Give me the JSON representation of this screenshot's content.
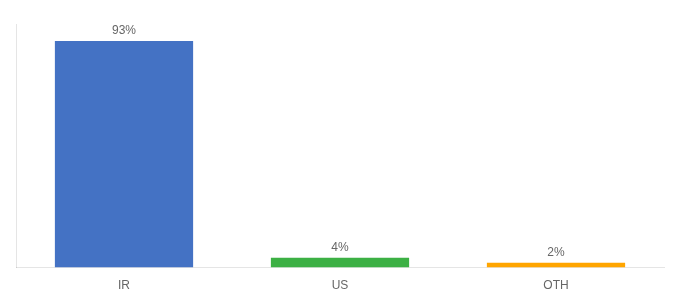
{
  "chart_data": {
    "type": "bar",
    "categories": [
      "IR",
      "US",
      "OTH"
    ],
    "values": [
      93,
      4,
      2
    ],
    "value_labels": [
      "93%",
      "4%",
      "2%"
    ],
    "colors": [
      "#4472C4",
      "#3CB044",
      "#FFA500"
    ],
    "ylim": [
      0,
      100
    ],
    "yticks": [],
    "data_labels": true,
    "tick_labels": "x",
    "grid": false
  }
}
